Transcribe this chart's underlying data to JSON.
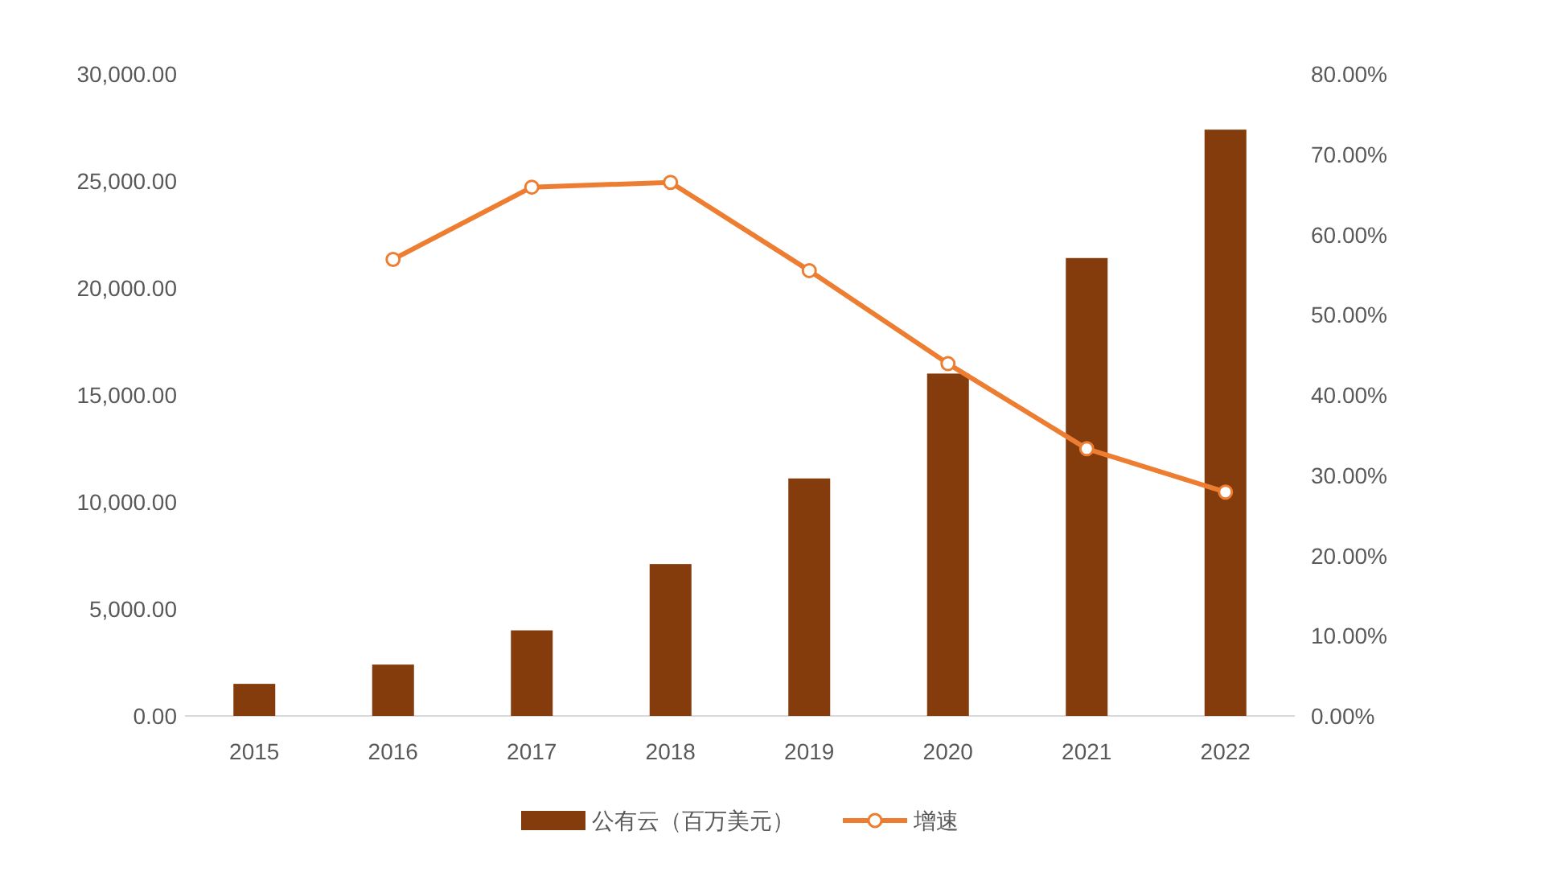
{
  "chart_data": {
    "type": "bar",
    "categories": [
      "2015",
      "2016",
      "2017",
      "2018",
      "2019",
      "2020",
      "2021",
      "2022"
    ],
    "series": [
      {
        "name": "公有云（百万美元）",
        "color": "#843c0c",
        "values": [
          1500,
          2400,
          4000,
          7100,
          11100,
          16000,
          21400,
          27400
        ]
      },
      {
        "name": "增速",
        "type": "line",
        "axis": "y2",
        "color": "#ed7d31",
        "marker": "circle",
        "values": [
          null,
          56.9,
          65.9,
          66.5,
          55.5,
          43.9,
          33.3,
          27.9
        ]
      }
    ],
    "ylim": [
      0,
      30000
    ],
    "yticks": [
      {
        "value": 0,
        "label": "0.00"
      },
      {
        "value": 5000,
        "label": "5,000.00"
      },
      {
        "value": 10000,
        "label": "10,000.00"
      },
      {
        "value": 15000,
        "label": "15,000.00"
      },
      {
        "value": 20000,
        "label": "20,000.00"
      },
      {
        "value": 25000,
        "label": "25,000.00"
      },
      {
        "value": 30000,
        "label": "30,000.00"
      }
    ],
    "y2lim": [
      0,
      80
    ],
    "y2ticks": [
      {
        "value": 0,
        "label": "0.00%"
      },
      {
        "value": 10,
        "label": "10.00%"
      },
      {
        "value": 20,
        "label": "20.00%"
      },
      {
        "value": 30,
        "label": "30.00%"
      },
      {
        "value": 40,
        "label": "40.00%"
      },
      {
        "value": 50,
        "label": "50.00%"
      },
      {
        "value": 60,
        "label": "60.00%"
      },
      {
        "value": 70,
        "label": "70.00%"
      },
      {
        "value": 80,
        "label": "80.00%"
      }
    ],
    "legend": "bottom"
  }
}
